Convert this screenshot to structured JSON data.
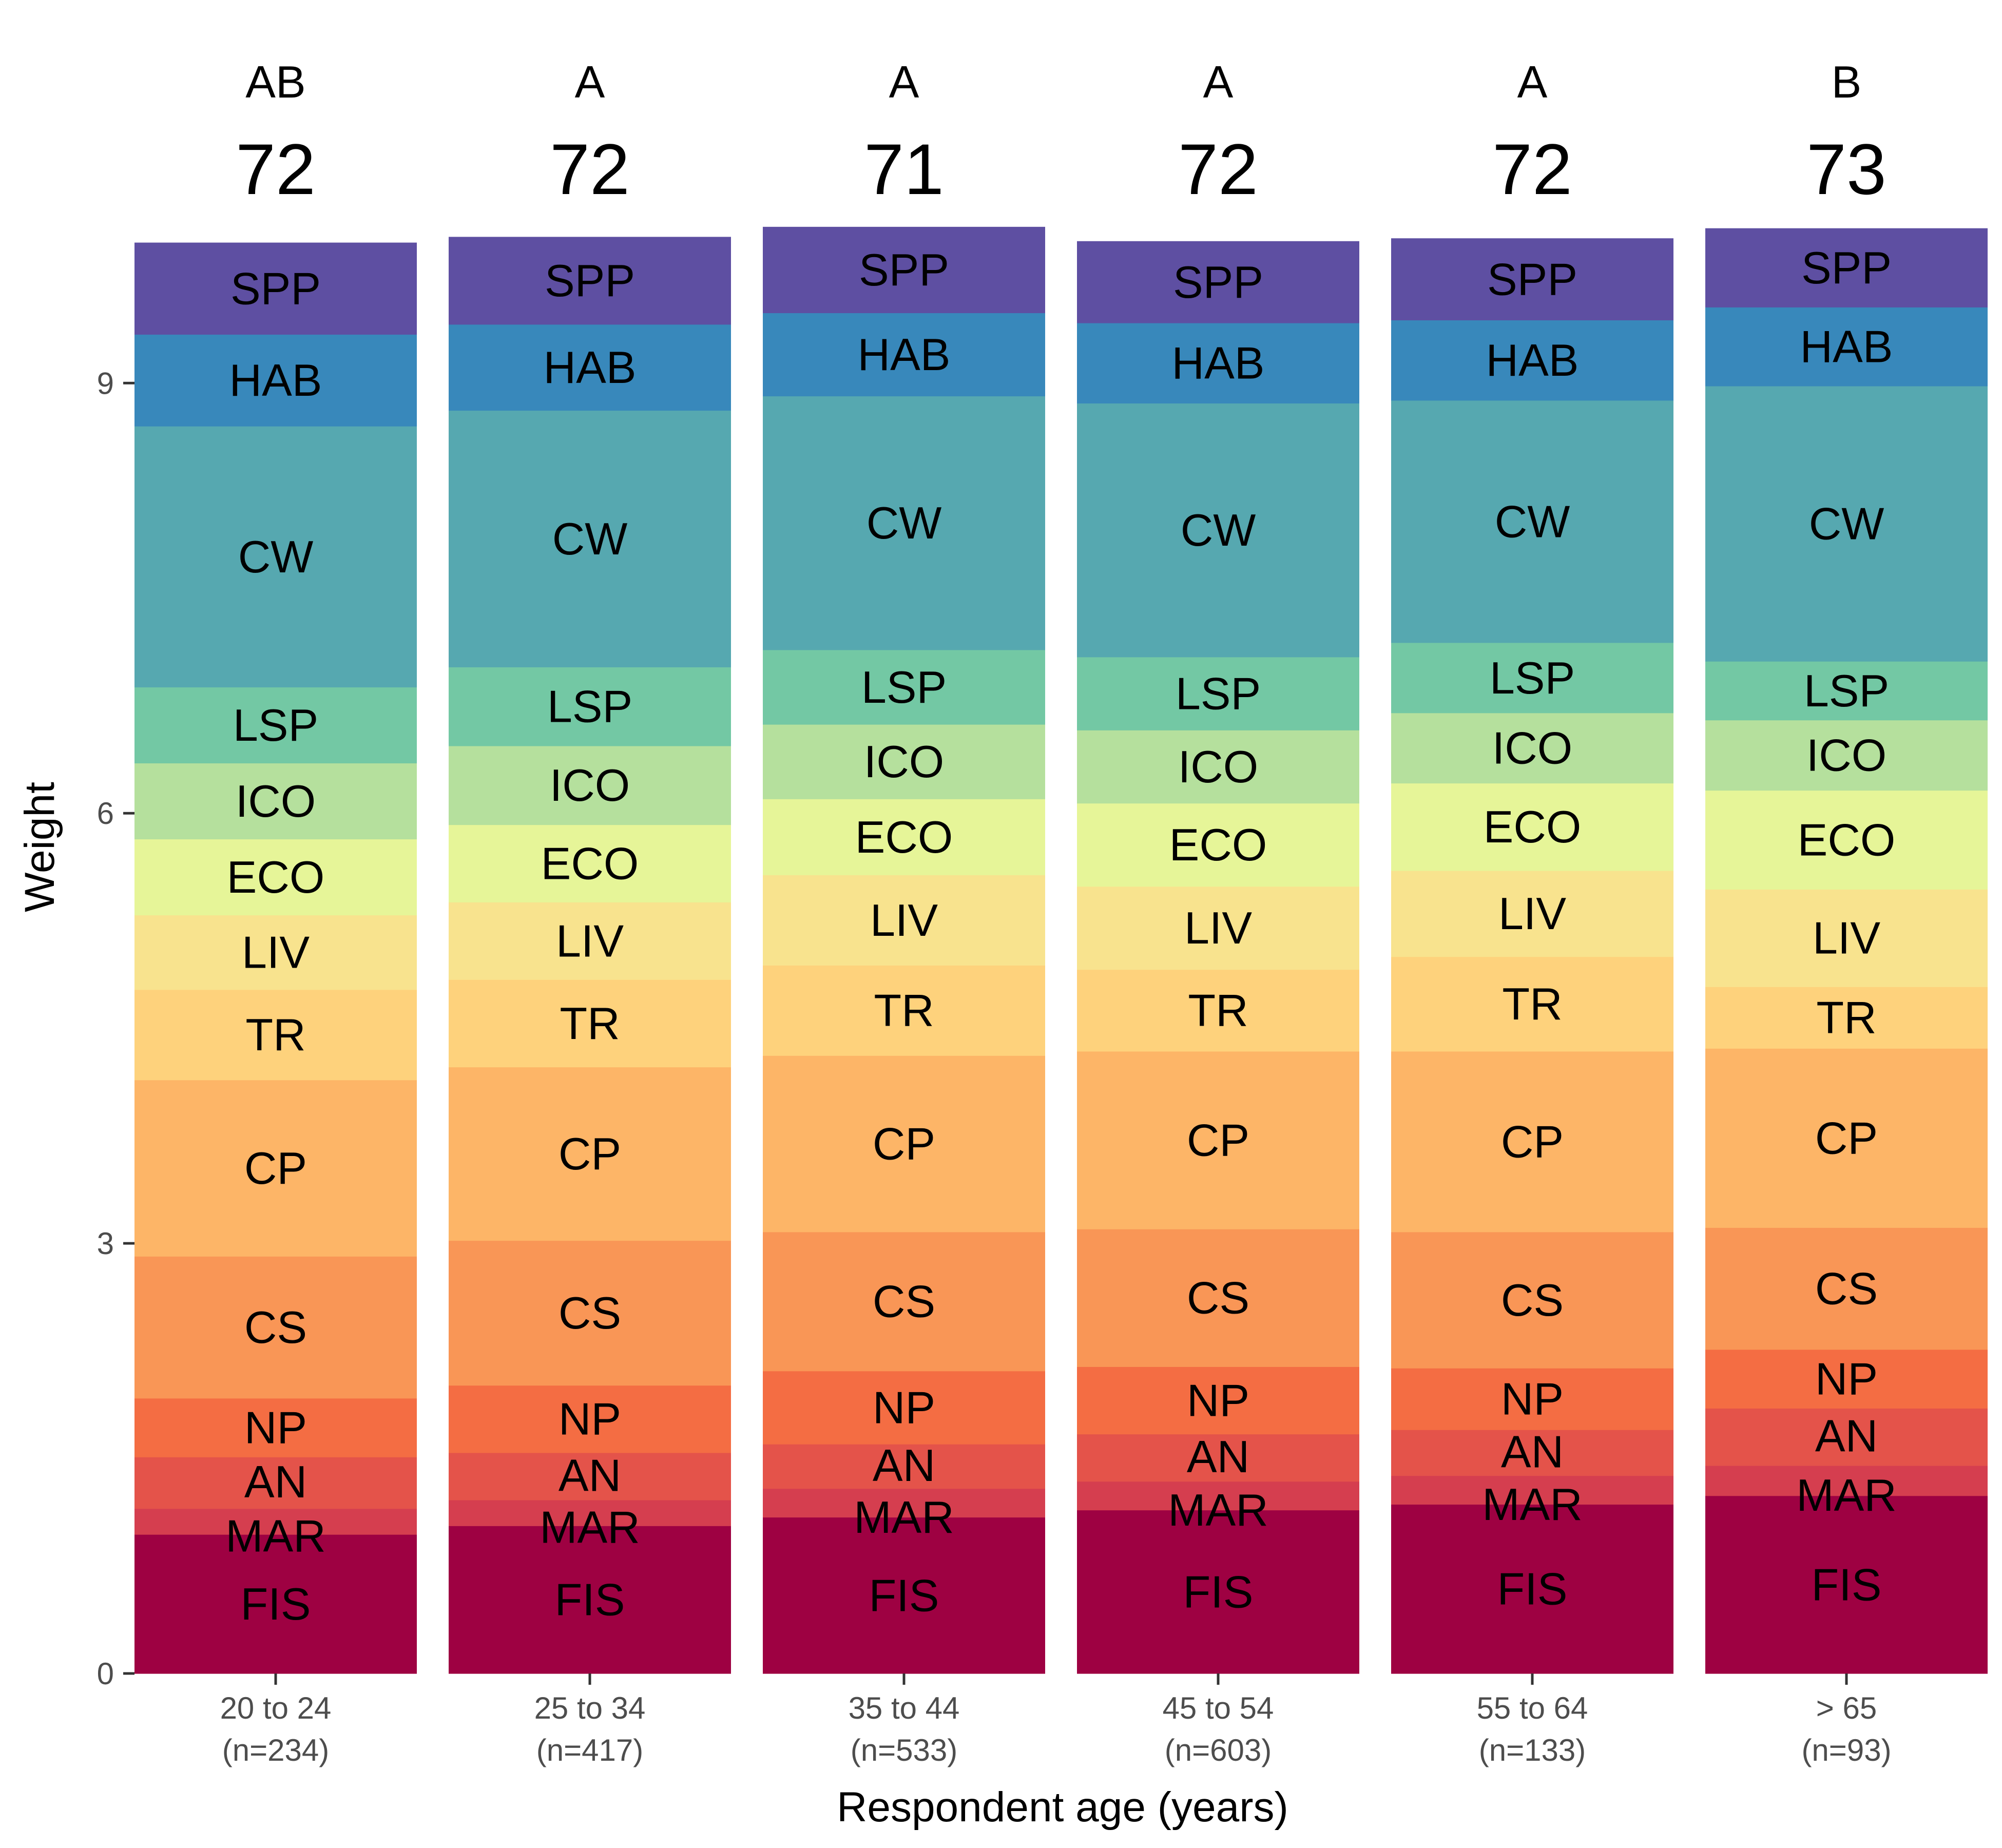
{
  "chart_data": {
    "type": "bar",
    "stacked": true,
    "xlabel": "Respondent age (years)",
    "ylabel": "Weight",
    "ylim": [
      0,
      10
    ],
    "yticks": [
      0,
      3,
      6,
      9
    ],
    "grid": false,
    "legend": "none",
    "categories": [
      {
        "name": "20 to 24",
        "n": "(n=234)",
        "letter": "AB",
        "score": "72"
      },
      {
        "name": "25 to 34",
        "n": "(n=417)",
        "letter": "A",
        "score": "72"
      },
      {
        "name": "35 to 44",
        "n": "(n=533)",
        "letter": "A",
        "score": "71"
      },
      {
        "name": "45 to 54",
        "n": "(n=603)",
        "letter": "A",
        "score": "72"
      },
      {
        "name": "55 to 64",
        "n": "(n=133)",
        "letter": "A",
        "score": "72"
      },
      {
        "name": "> 65",
        "n": "(n=93)",
        "letter": "B",
        "score": "73"
      }
    ],
    "series": [
      {
        "name": "FIS",
        "color": "#9e0142",
        "values": [
          0.97,
          1.03,
          1.09,
          1.14,
          1.18,
          1.24
        ]
      },
      {
        "name": "MAR",
        "color": "#d53e4f",
        "values": [
          0.18,
          0.18,
          0.2,
          0.2,
          0.2,
          0.21
        ]
      },
      {
        "name": "AN",
        "color": "#e4534a",
        "values": [
          0.36,
          0.33,
          0.31,
          0.33,
          0.32,
          0.4
        ]
      },
      {
        "name": "NP",
        "color": "#f46d43",
        "values": [
          0.41,
          0.47,
          0.51,
          0.47,
          0.43,
          0.41
        ]
      },
      {
        "name": "CS",
        "color": "#f99656",
        "values": [
          0.99,
          1.01,
          0.97,
          0.96,
          0.95,
          0.85
        ]
      },
      {
        "name": "CP",
        "color": "#fdb567",
        "values": [
          1.23,
          1.21,
          1.23,
          1.24,
          1.26,
          1.25
        ]
      },
      {
        "name": "TR",
        "color": "#fed27c",
        "values": [
          0.63,
          0.61,
          0.63,
          0.57,
          0.66,
          0.43
        ]
      },
      {
        "name": "LIV",
        "color": "#f8e38e",
        "values": [
          0.52,
          0.54,
          0.63,
          0.58,
          0.6,
          0.68
        ]
      },
      {
        "name": "ECO",
        "color": "#e6f598",
        "values": [
          0.53,
          0.54,
          0.53,
          0.58,
          0.61,
          0.69
        ]
      },
      {
        "name": "ICO",
        "color": "#b5e09d",
        "values": [
          0.53,
          0.55,
          0.52,
          0.51,
          0.49,
          0.49
        ]
      },
      {
        "name": "LSP",
        "color": "#73c8a4",
        "values": [
          0.53,
          0.55,
          0.52,
          0.51,
          0.49,
          0.41
        ]
      },
      {
        "name": "CW",
        "color": "#56a8b0",
        "values": [
          1.82,
          1.79,
          1.77,
          1.77,
          1.69,
          1.92
        ]
      },
      {
        "name": "HAB",
        "color": "#3888bb",
        "values": [
          0.64,
          0.6,
          0.58,
          0.56,
          0.56,
          0.55
        ]
      },
      {
        "name": "SPP",
        "color": "#5e4fa2",
        "values": [
          0.64,
          0.61,
          0.6,
          0.57,
          0.57,
          0.55
        ]
      }
    ]
  }
}
